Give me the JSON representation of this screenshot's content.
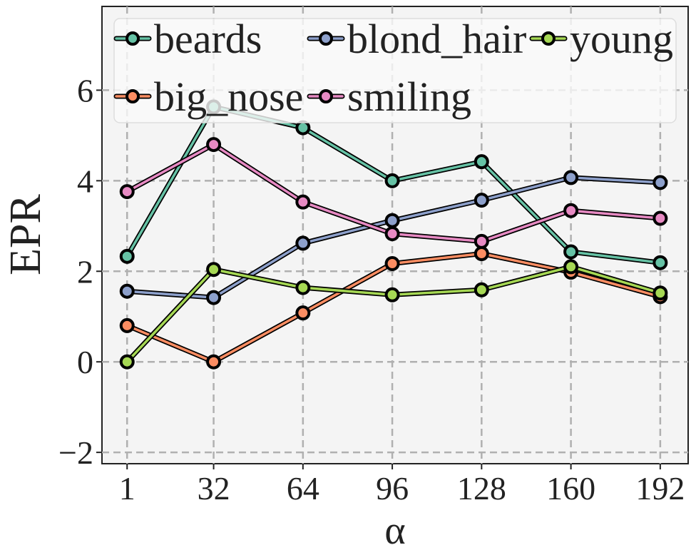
{
  "chart_data": {
    "type": "line",
    "xlabel": "α",
    "ylabel": "EPR",
    "x": [
      1,
      32,
      64,
      96,
      128,
      160,
      192
    ],
    "x_tick_labels": [
      "1",
      "32",
      "64",
      "96",
      "128",
      "160",
      "192"
    ],
    "y_ticks": [
      -2,
      0,
      2,
      4,
      6
    ],
    "y_tick_labels": [
      "−2",
      "0",
      "2",
      "4",
      "6"
    ],
    "ylim": [
      -2.25,
      7.85
    ],
    "xlim": [
      -8,
      202
    ],
    "grid": true,
    "legend_position": "top",
    "series": [
      {
        "name": "beards",
        "color": "#66c2a5",
        "values": [
          2.33,
          5.63,
          5.17,
          4.0,
          4.42,
          2.43,
          2.19
        ]
      },
      {
        "name": "big_nose",
        "color": "#fc8d62",
        "values": [
          0.8,
          0.0,
          1.08,
          2.17,
          2.39,
          1.98,
          1.44
        ]
      },
      {
        "name": "blond_hair",
        "color": "#8da0cb",
        "values": [
          1.56,
          1.42,
          2.62,
          3.12,
          3.57,
          4.07,
          3.96
        ]
      },
      {
        "name": "smiling",
        "color": "#e78ac3",
        "values": [
          3.76,
          4.8,
          3.53,
          2.83,
          2.66,
          3.34,
          3.17
        ]
      },
      {
        "name": "young",
        "color": "#a6d854",
        "values": [
          0.0,
          2.04,
          1.64,
          1.48,
          1.59,
          2.1,
          1.52
        ]
      }
    ]
  }
}
